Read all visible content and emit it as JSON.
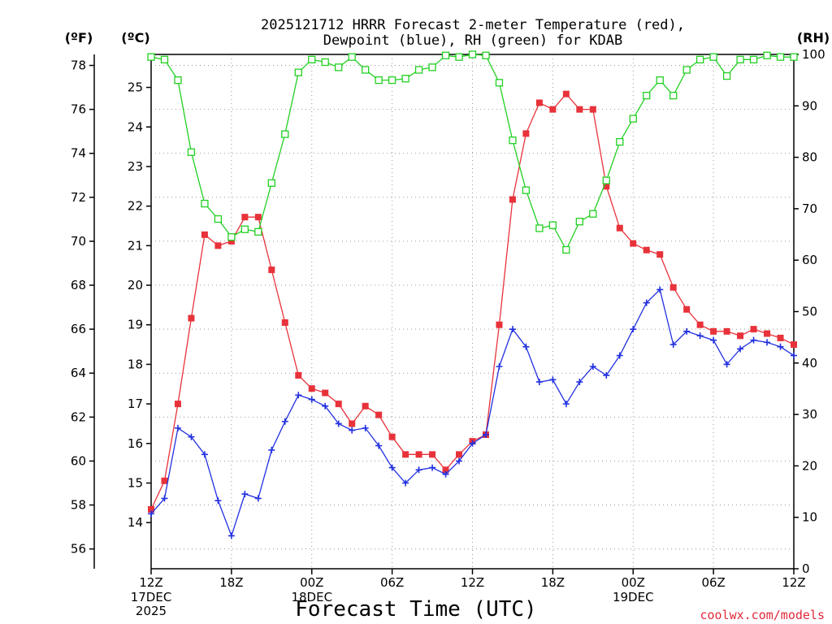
{
  "chart_data": {
    "type": "line",
    "title_line1": "2025121712 HRRR Forecast 2-meter Temperature (red),",
    "title_line2": "Dewpoint (blue), RH (green) for KDAB",
    "left_axis_label_f": "(ºF)",
    "left_axis_label_c": "(ºC)",
    "right_axis_label": "(RH)",
    "xlabel": "Forecast Time (UTC)",
    "credit": "coolwx.com/models",
    "x_ticks": [
      {
        "hour": 0,
        "label": "12Z",
        "sub1": "17DEC",
        "sub2": "2025"
      },
      {
        "hour": 6,
        "label": "18Z",
        "sub1": "",
        "sub2": ""
      },
      {
        "hour": 12,
        "label": "00Z",
        "sub1": "18DEC",
        "sub2": ""
      },
      {
        "hour": 18,
        "label": "06Z",
        "sub1": "",
        "sub2": ""
      },
      {
        "hour": 24,
        "label": "12Z",
        "sub1": "",
        "sub2": ""
      },
      {
        "hour": 30,
        "label": "18Z",
        "sub1": "",
        "sub2": ""
      },
      {
        "hour": 36,
        "label": "00Z",
        "sub1": "19DEC",
        "sub2": ""
      },
      {
        "hour": 42,
        "label": "06Z",
        "sub1": "",
        "sub2": ""
      },
      {
        "hour": 48,
        "label": "12Z",
        "sub1": "",
        "sub2": ""
      }
    ],
    "xlim": [
      0,
      48
    ],
    "y_left_f": {
      "ylim": [
        55.1,
        78.5
      ],
      "ticks": [
        56,
        58,
        60,
        62,
        64,
        66,
        68,
        70,
        72,
        74,
        76,
        78
      ]
    },
    "y_left_c": {
      "ticks": [
        14,
        15,
        16,
        17,
        18,
        19,
        20,
        21,
        22,
        23,
        24,
        25
      ]
    },
    "y_right": {
      "ylim": [
        0,
        100
      ],
      "ticks": [
        0,
        10,
        20,
        30,
        40,
        50,
        60,
        70,
        80,
        90,
        100
      ]
    },
    "grid": true,
    "series": [
      {
        "name": "Temperature",
        "unit": "F",
        "color": "#e8323a",
        "marker": "filled-square",
        "x": [
          0,
          1,
          2,
          3,
          4,
          5,
          6,
          7,
          8,
          9,
          10,
          11,
          12,
          13,
          14,
          15,
          16,
          17,
          18,
          19,
          20,
          21,
          22,
          23,
          24,
          25,
          26,
          27,
          28,
          29,
          30,
          31,
          32,
          33,
          34,
          35,
          36,
          37,
          38,
          39,
          40,
          41,
          42,
          43,
          44,
          45,
          46,
          47,
          48
        ],
        "values": [
          57.8,
          59.1,
          62.6,
          66.5,
          70.3,
          69.8,
          70.0,
          71.1,
          71.1,
          68.7,
          66.3,
          63.9,
          63.3,
          63.1,
          62.6,
          61.7,
          62.5,
          62.1,
          61.1,
          60.3,
          60.3,
          60.3,
          59.6,
          60.3,
          60.9,
          61.2,
          66.2,
          71.9,
          74.9,
          76.3,
          76.0,
          76.7,
          76.0,
          76.0,
          72.5,
          70.6,
          69.9,
          69.6,
          69.4,
          67.9,
          66.9,
          66.2,
          65.9,
          65.9,
          65.7,
          66.0,
          65.8,
          65.6,
          65.3
        ]
      },
      {
        "name": "Dewpoint",
        "unit": "F",
        "color": "#2230e0",
        "marker": "plus",
        "x": [
          0,
          1,
          2,
          3,
          4,
          5,
          6,
          7,
          8,
          9,
          10,
          11,
          12,
          13,
          14,
          15,
          16,
          17,
          18,
          19,
          20,
          21,
          22,
          23,
          24,
          25,
          26,
          27,
          28,
          29,
          30,
          31,
          32,
          33,
          34,
          35,
          36,
          37,
          38,
          39,
          40,
          41,
          42,
          43,
          44,
          45,
          46,
          47,
          48
        ],
        "values": [
          57.6,
          58.3,
          61.5,
          61.1,
          60.3,
          58.2,
          56.6,
          58.5,
          58.3,
          60.5,
          61.8,
          63.0,
          62.8,
          62.5,
          61.7,
          61.4,
          61.5,
          60.7,
          59.7,
          59.0,
          59.6,
          59.7,
          59.4,
          60.0,
          60.8,
          61.2,
          64.3,
          66.0,
          65.2,
          63.6,
          63.7,
          62.6,
          63.6,
          64.3,
          63.9,
          64.8,
          66.0,
          67.2,
          67.8,
          65.3,
          65.9,
          65.7,
          65.5,
          64.4,
          65.1,
          65.5,
          65.4,
          65.2,
          64.8
        ]
      },
      {
        "name": "RH",
        "unit": "%",
        "color": "#22d022",
        "marker": "open-square",
        "x": [
          0,
          1,
          2,
          3,
          4,
          5,
          6,
          7,
          8,
          9,
          10,
          11,
          12,
          13,
          14,
          15,
          16,
          17,
          18,
          19,
          20,
          21,
          22,
          23,
          24,
          25,
          26,
          27,
          28,
          29,
          30,
          31,
          32,
          33,
          34,
          35,
          36,
          37,
          38,
          39,
          40,
          41,
          42,
          43,
          44,
          45,
          46,
          47,
          48
        ],
        "values": [
          99.5,
          99.0,
          95.0,
          81.0,
          71.0,
          68.0,
          64.5,
          66.0,
          65.5,
          75.0,
          84.5,
          96.5,
          99.0,
          98.5,
          97.5,
          99.5,
          97.0,
          95.0,
          95.0,
          95.3,
          97.0,
          97.5,
          99.8,
          99.5,
          100.0,
          99.8,
          94.5,
          83.3,
          73.6,
          66.2,
          66.8,
          62.0,
          67.5,
          69.0,
          75.5,
          83.0,
          87.5,
          92.0,
          95.0,
          92.0,
          97.0,
          99.0,
          99.5,
          95.8,
          99.0,
          99.0,
          99.8,
          99.5,
          99.5
        ]
      }
    ]
  }
}
